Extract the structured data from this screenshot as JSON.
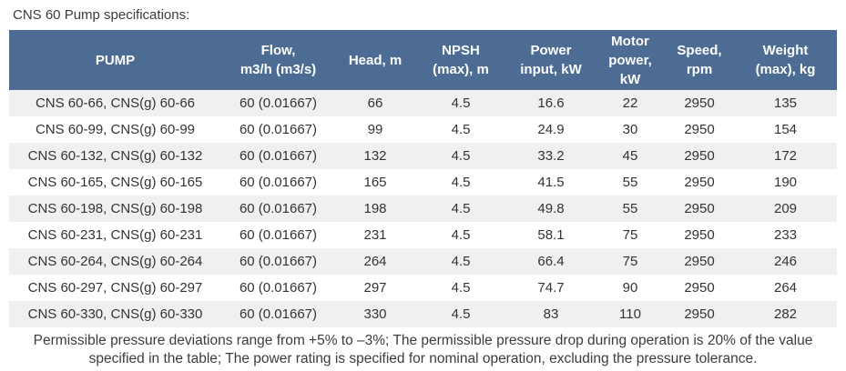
{
  "page": {
    "title": "CNS 60 Pump specifications:"
  },
  "colors": {
    "header_bg": "#4d6c94",
    "header_text": "#ffffff",
    "row_alt_bg": "#f0f0f0",
    "row_bg": "#ffffff",
    "body_text": "#333333"
  },
  "table": {
    "columns": [
      {
        "label": "PUMP"
      },
      {
        "label": "Flow,\nm3/h (m3/s)"
      },
      {
        "label": "Head, m"
      },
      {
        "label": "NPSH\n(max), m"
      },
      {
        "label": "Power\ninput, kW"
      },
      {
        "label": "Motor\npower,\nkW"
      },
      {
        "label": "Speed,\nrpm"
      },
      {
        "label": "Weight\n(max), kg"
      }
    ],
    "rows": [
      [
        "CNS 60-66, CNS(g) 60-66",
        "60 (0.01667)",
        "66",
        "4.5",
        "16.6",
        "22",
        "2950",
        "135"
      ],
      [
        "CNS 60-99, CNS(g) 60-99",
        "60 (0.01667)",
        "99",
        "4.5",
        "24.9",
        "30",
        "2950",
        "154"
      ],
      [
        "CNS 60-132, CNS(g) 60-132",
        "60 (0.01667)",
        "132",
        "4.5",
        "33.2",
        "45",
        "2950",
        "172"
      ],
      [
        "CNS 60-165, CNS(g) 60-165",
        "60 (0.01667)",
        "165",
        "4.5",
        "41.5",
        "55",
        "2950",
        "190"
      ],
      [
        "CNS 60-198, CNS(g) 60-198",
        "60 (0.01667)",
        "198",
        "4.5",
        "49.8",
        "55",
        "2950",
        "209"
      ],
      [
        "CNS 60-231, CNS(g) 60-231",
        "60 (0.01667)",
        "231",
        "4.5",
        "58.1",
        "75",
        "2950",
        "233"
      ],
      [
        "CNS 60-264, CNS(g) 60-264",
        "60 (0.01667)",
        "264",
        "4.5",
        "66.4",
        "75",
        "2950",
        "246"
      ],
      [
        "CNS 60-297, CNS(g) 60-297",
        "60 (0.01667)",
        "297",
        "4.5",
        "74.7",
        "90",
        "2950",
        "264"
      ],
      [
        "CNS 60-330, CNS(g) 60-330",
        "60 (0.01667)",
        "330",
        "4.5",
        "83",
        "110",
        "2950",
        "282"
      ]
    ]
  },
  "footer": {
    "note": "Permissible pressure deviations range from +5% to –3%; The permissible pressure drop during operation is 20% of the value\nspecified in the table; The power rating is specified for nominal operation, excluding the pressure tolerance."
  }
}
